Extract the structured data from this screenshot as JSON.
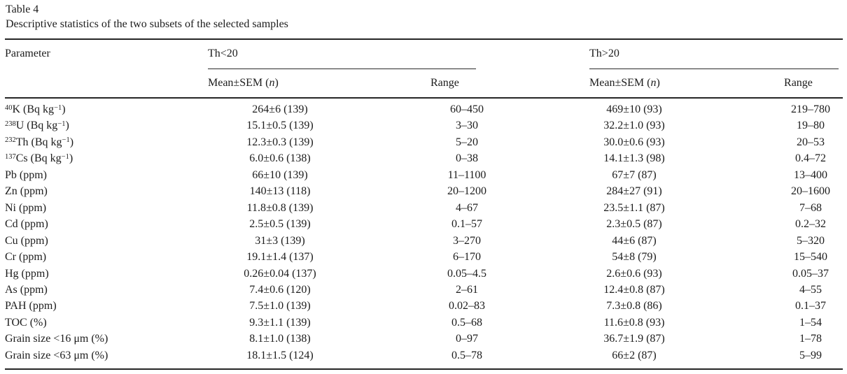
{
  "page": {
    "title": "Table 4",
    "caption": "Descriptive statistics of the two subsets of the selected samples"
  },
  "colors": {
    "background": "#ffffff",
    "ink": "#1c1c1c",
    "rule": "#262626"
  },
  "table": {
    "param_header": "Parameter",
    "groups": [
      {
        "label": "Th<20",
        "mean_header": "Mean±SEM (*n*)",
        "range_header": "Range"
      },
      {
        "label": "Th>20",
        "mean_header": "Mean±SEM (*n*)",
        "range_header": "Range"
      }
    ],
    "rows": [
      {
        "parameter": "^{40}K (Bq kg^{−1})",
        "lt": {
          "mean": "264±6 (139)",
          "range": "60–450"
        },
        "gt": {
          "mean": "469±10 (93)",
          "range": "219–780"
        }
      },
      {
        "parameter": "^{238}U (Bq kg^{−1})",
        "lt": {
          "mean": "15.1±0.5 (139)",
          "range": "3–30"
        },
        "gt": {
          "mean": "32.2±1.0 (93)",
          "range": "19–80"
        }
      },
      {
        "parameter": "^{232}Th (Bq kg^{−1})",
        "lt": {
          "mean": "12.3±0.3 (139)",
          "range": "5–20"
        },
        "gt": {
          "mean": "30.0±0.6 (93)",
          "range": "20–53"
        }
      },
      {
        "parameter": "^{137}Cs (Bq kg^{−1})",
        "lt": {
          "mean": "6.0±0.6 (138)",
          "range": "0–38"
        },
        "gt": {
          "mean": "14.1±1.3 (98)",
          "range": "0.4–72"
        }
      },
      {
        "parameter": "Pb (ppm)",
        "lt": {
          "mean": "66±10 (139)",
          "range": "11–1100"
        },
        "gt": {
          "mean": "67±7 (87)",
          "range": "13–400"
        }
      },
      {
        "parameter": "Zn (ppm)",
        "lt": {
          "mean": "140±13 (118)",
          "range": "20–1200"
        },
        "gt": {
          "mean": "284±27 (91)",
          "range": "20–1600"
        }
      },
      {
        "parameter": "Ni (ppm)",
        "lt": {
          "mean": "11.8±0.8 (139)",
          "range": "4–67"
        },
        "gt": {
          "mean": "23.5±1.1 (87)",
          "range": "7–68"
        }
      },
      {
        "parameter": "Cd (ppm)",
        "lt": {
          "mean": "2.5±0.5 (139)",
          "range": "0.1–57"
        },
        "gt": {
          "mean": "2.3±0.5 (87)",
          "range": "0.2–32"
        }
      },
      {
        "parameter": "Cu (ppm)",
        "lt": {
          "mean": "31±3 (139)",
          "range": "3–270"
        },
        "gt": {
          "mean": "44±6 (87)",
          "range": "5–320"
        }
      },
      {
        "parameter": "Cr (ppm)",
        "lt": {
          "mean": "19.1±1.4 (137)",
          "range": "6–170"
        },
        "gt": {
          "mean": "54±8 (79)",
          "range": "15–540"
        }
      },
      {
        "parameter": "Hg (ppm)",
        "lt": {
          "mean": "0.26±0.04 (137)",
          "range": "0.05–4.5"
        },
        "gt": {
          "mean": "2.6±0.6 (93)",
          "range": "0.05–37"
        }
      },
      {
        "parameter": "As (ppm)",
        "lt": {
          "mean": "7.4±0.6 (120)",
          "range": "2–61"
        },
        "gt": {
          "mean": "12.4±0.8 (87)",
          "range": "4–55"
        }
      },
      {
        "parameter": "PAH (ppm)",
        "lt": {
          "mean": "7.5±1.0 (139)",
          "range": "0.02–83"
        },
        "gt": {
          "mean": "7.3±0.8 (86)",
          "range": "0.1–37"
        }
      },
      {
        "parameter": "TOC (%)",
        "lt": {
          "mean": "9.3±1.1 (139)",
          "range": "0.5–68"
        },
        "gt": {
          "mean": "11.6±0.8 (93)",
          "range": "1–54"
        }
      },
      {
        "parameter": "Grain size <16 μm (%)",
        "lt": {
          "mean": "8.1±1.0 (138)",
          "range": "0–97"
        },
        "gt": {
          "mean": "36.7±1.9 (87)",
          "range": "1–78"
        }
      },
      {
        "parameter": "Grain size <63 μm (%)",
        "lt": {
          "mean": "18.1±1.5 (124)",
          "range": "0.5–78"
        },
        "gt": {
          "mean": "66±2 (87)",
          "range": "5–99"
        }
      }
    ]
  }
}
